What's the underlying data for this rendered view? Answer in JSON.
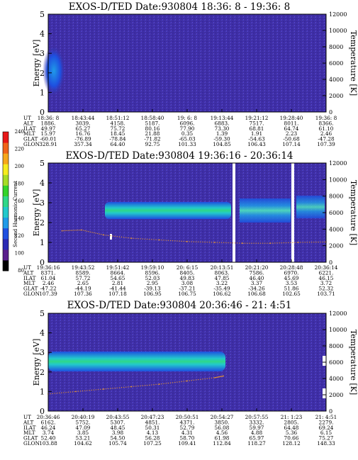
{
  "colorbar": {
    "label": "Second Harmonic Current",
    "ticks": [
      "80",
      "100",
      "120",
      "140",
      "160",
      "180",
      "200",
      "220",
      "240"
    ],
    "colors": [
      "#000000",
      "#5a1f8c",
      "#2a2ab4",
      "#1e4fe0",
      "#1f9be8",
      "#22c9cc",
      "#2fd889",
      "#34d42a",
      "#a7dc27",
      "#f6ec20",
      "#f6a81c",
      "#f0641a",
      "#e81818"
    ]
  },
  "row_labels": [
    "UT",
    "ALT",
    "ILAT",
    "MLT",
    "GLAT",
    "GLON"
  ],
  "panels": [
    {
      "title": "EXOS-D/TED   Date:930804   18:36: 8 - 19:36: 8",
      "ylabel_left": "Energy [eV]",
      "ylabel_right": "Temperature [K]",
      "yticks_left": [
        "0",
        "1",
        "2",
        "3",
        "4",
        "5"
      ],
      "yticks_right": [
        "0",
        "2000",
        "4000",
        "6000",
        "8000",
        "10000",
        "12000"
      ],
      "columns": [
        [
          "18:36: 8",
          "1886.",
          "49.97",
          "15.97",
          "-60.01",
          "328.91"
        ],
        [
          "18:43:44",
          "3039.",
          "65.27",
          "16.76",
          "-76.89",
          "357.34"
        ],
        [
          "18:51:12",
          "4158.",
          "75.72",
          "18.45",
          "-78.84",
          "64.40"
        ],
        [
          "18:58:40",
          "5187.",
          "80.16",
          "21.88",
          "-71.82",
          "92.75"
        ],
        [
          "19: 6: 8",
          "6096.",
          "77.90",
          "0.35",
          "-65.03",
          "101.33"
        ],
        [
          "19:13:44",
          "6883.",
          "73.30",
          "1.39",
          "-59.30",
          "104.85"
        ],
        [
          "19:21:12",
          "7517.",
          "68.81",
          "1.91",
          "-54.63",
          "106.43"
        ],
        [
          "19:28:40",
          "8011.",
          "64.74",
          "2.23",
          "-50.68",
          "107.14"
        ],
        [
          "19:36: 8",
          "8366.",
          "61.10",
          "2.46",
          "-47.28",
          "107.39"
        ]
      ]
    },
    {
      "title": "EXOS-D/TED   Date:930804   19:36:16 - 20:36:14",
      "ylabel_left": "Energy [eV]",
      "ylabel_right": "Temperature [K]",
      "yticks_left": [
        "0",
        "1",
        "2",
        "3",
        "4",
        "5"
      ],
      "yticks_right": [
        "0",
        "2000",
        "4000",
        "6000",
        "8000",
        "10000",
        "12000"
      ],
      "columns": [
        [
          "19:36:16",
          "8371.",
          "61.04",
          "2.46",
          "-47.22",
          "107.39"
        ],
        [
          "19:43:52",
          "8589.",
          "57.72",
          "2.65",
          "-44.19",
          "107.36"
        ],
        [
          "19:51:42",
          "8664.",
          "54.65",
          "2.81",
          "-41.44",
          "107.18"
        ],
        [
          "19:59:10",
          "8596.",
          "52.03",
          "2.95",
          "-39.13",
          "106.95"
        ],
        [
          "20: 6:15",
          "8405.",
          "49.83",
          "3.08",
          "-37.21",
          "106.75"
        ],
        [
          "20:13:51",
          "8063.",
          "47.85",
          "3.22",
          "-35.49",
          "106.62"
        ],
        [
          "20:21:20",
          "7586.",
          "46.40",
          "3.37",
          "-34.26",
          "106.68"
        ],
        [
          "20:28:48",
          "6970.",
          "45.69",
          "3.53",
          "51.86",
          "102.65"
        ],
        [
          "20:36:14",
          "6221.",
          "46.15",
          "3.72",
          "52.32",
          "103.71"
        ]
      ]
    },
    {
      "title": "EXOS-D/TED   Date:930804   20:36:46 - 21: 4:51",
      "ylabel_left": "Energy [eV]",
      "ylabel_right": "Temperature [K]",
      "yticks_left": [
        "0",
        "1",
        "2",
        "3",
        "4",
        "5"
      ],
      "yticks_right": [
        "0",
        "2000",
        "4000",
        "6000",
        "8000",
        "10000",
        "12000"
      ],
      "columns": [
        [
          "20:36:46",
          "6162.",
          "46.24",
          "3.74",
          "52.40",
          "103.88"
        ],
        [
          "20:40:19",
          "5752.",
          "47.09",
          "3.85",
          "53.21",
          "104.62"
        ],
        [
          "20:43:55",
          "5307.",
          "48.45",
          "3.98",
          "54.50",
          "105.74"
        ],
        [
          "20:47:23",
          "4851.",
          "50.31",
          "4.13",
          "56.28",
          "107.25"
        ],
        [
          "20:50:51",
          "4371.",
          "52.79",
          "4.31",
          "58.70",
          "109.41"
        ],
        [
          "20:54:27",
          "3850.",
          "56.08",
          "4.56",
          "61.98",
          "112.84"
        ],
        [
          "20:57:55",
          "3332.",
          "59.97",
          "4.88",
          "65.97",
          "118.27"
        ],
        [
          "21: 1:23",
          "2805.",
          "64.48",
          "5.36",
          "70.66",
          "128.12"
        ],
        [
          "21: 4:51",
          "2279.",
          "69.24",
          "6.15",
          "75.27",
          "148.33"
        ]
      ]
    }
  ],
  "chart_data": [
    {
      "type": "heatmap",
      "title": "EXOS-D/TED   Date:930804   18:36: 8 - 19:36: 8",
      "xlabel": "UT",
      "ylabel": "Energy [eV]",
      "ylabel_right": "Temperature [K]",
      "ylim": [
        0,
        5
      ],
      "ylim_right": [
        0,
        12000
      ],
      "x_ticks": [
        "18:36: 8",
        "18:43:44",
        "18:51:12",
        "18:58:40",
        "19: 6: 8",
        "19:13:44",
        "19:21:12",
        "19:28:40",
        "19:36: 8"
      ],
      "features": [
        {
          "x_start": 0.0,
          "x_end": 0.09,
          "energy_low": 1.2,
          "energy_high": 3.6,
          "level": 150
        }
      ],
      "series": []
    },
    {
      "type": "heatmap",
      "title": "EXOS-D/TED   Date:930804   19:36:16 - 20:36:14",
      "xlabel": "UT",
      "ylabel": "Energy [eV]",
      "ylabel_right": "Temperature [K]",
      "ylim": [
        0,
        5
      ],
      "ylim_right": [
        0,
        12000
      ],
      "x_ticks": [
        "19:36:16",
        "19:43:52",
        "19:51:42",
        "19:59:10",
        "20: 6:15",
        "20:13:51",
        "20:21:20",
        "20:28:48",
        "20:36:14"
      ],
      "features": [
        {
          "x_start": 0.08,
          "x_end": 0.78,
          "energy_low": 2.3,
          "energy_high": 3.0,
          "level": 160
        },
        {
          "x_start": 0.8,
          "x_end": 1.0,
          "energy_low": 2.2,
          "energy_high": 3.3,
          "level": 140
        }
      ],
      "series": [
        {
          "x": [
            0.05,
            0.12,
            0.2,
            0.3,
            0.4,
            0.5,
            0.6,
            0.7,
            0.8,
            0.9,
            1.0
          ],
          "values": [
            3800,
            3900,
            3300,
            2900,
            2700,
            2500,
            2400,
            2300,
            2300,
            2400,
            2450
          ]
        }
      ]
    },
    {
      "type": "heatmap",
      "title": "EXOS-D/TED   Date:930804   20:36:46 - 21: 4:51",
      "xlabel": "UT",
      "ylabel": "Energy [eV]",
      "ylabel_right": "Temperature [K]",
      "ylim": [
        0,
        5
      ],
      "ylim_right": [
        0,
        12000
      ],
      "x_ticks": [
        "20:36:46",
        "20:40:19",
        "20:43:55",
        "20:47:23",
        "20:50:51",
        "20:54:27",
        "20:57:55",
        "21: 1:23",
        "21: 4:51"
      ],
      "features": [
        {
          "x_start": 0.0,
          "x_end": 0.63,
          "energy_low": 2.3,
          "energy_high": 2.9,
          "level": 170
        }
      ],
      "series": [
        {
          "x": [
            0.0,
            0.1,
            0.2,
            0.3,
            0.4,
            0.5,
            0.6,
            0.63
          ],
          "values": [
            2100,
            2400,
            2700,
            3000,
            3300,
            3700,
            4100,
            4300
          ]
        }
      ]
    }
  ]
}
